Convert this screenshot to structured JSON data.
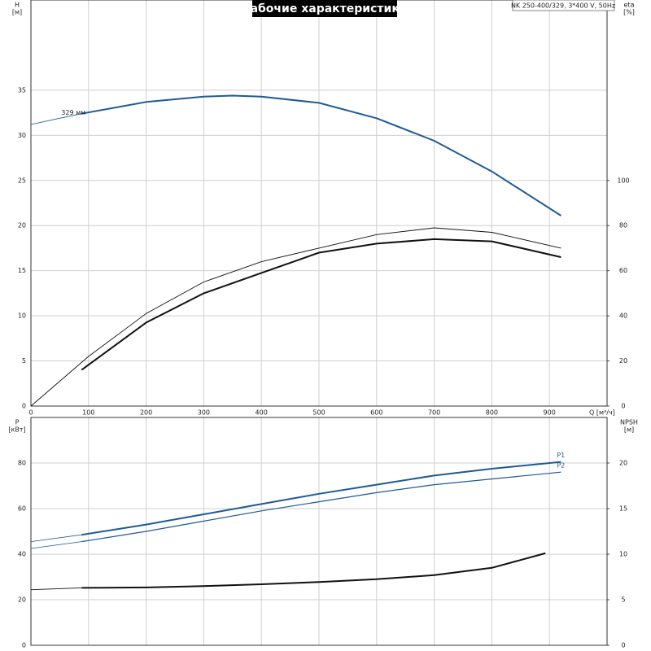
{
  "chart_data": [
    {
      "type": "line",
      "title": "Рабочие характеристики",
      "subtitle": "NK 250-400/329, 3*400 V, 50Hz",
      "ylabel": "H",
      "yunit": "[м]",
      "y2label": "eta",
      "y2unit": "[%]",
      "xlabel": "Q [м³/ч]",
      "xlim": [
        0,
        1000
      ],
      "xticks": [
        0,
        100,
        200,
        300,
        400,
        500,
        600,
        700,
        800,
        900
      ],
      "ylim": [
        0,
        45
      ],
      "yticks": [
        0,
        5,
        10,
        15,
        20,
        25,
        30,
        35
      ],
      "y2lim": [
        0,
        180
      ],
      "y2ticks": [
        0,
        20,
        40,
        60,
        80,
        100
      ],
      "grid": true,
      "show_xtick_labels": true,
      "series": [
        {
          "color": "#1f5a96",
          "width": 0.8,
          "x": [
            0,
            50,
            88
          ],
          "values": [
            31.2,
            31.9,
            32.4
          ]
        },
        {
          "color": "#1f5a96",
          "width": 2,
          "label": "329 мм",
          "x": [
            88,
            200,
            300,
            350,
            400,
            500,
            600,
            700,
            800,
            920
          ],
          "values": [
            32.4,
            33.7,
            34.3,
            34.4,
            34.3,
            33.6,
            31.9,
            29.4,
            26.0,
            21.1
          ]
        },
        {
          "color": "#111111",
          "width": 0.9,
          "axis": "y2",
          "x": [
            0,
            100,
            200,
            300,
            400,
            500,
            600,
            700,
            800,
            920
          ],
          "values": [
            0,
            22,
            41,
            55,
            64,
            70,
            76,
            79,
            77,
            70
          ]
        },
        {
          "color": "#111111",
          "width": 2,
          "axis": "y2",
          "x": [
            88,
            200,
            300,
            400,
            500,
            600,
            700,
            800,
            920
          ],
          "values": [
            16,
            37,
            50,
            59,
            68,
            72,
            74,
            73,
            66
          ]
        }
      ]
    },
    {
      "type": "line",
      "ylabel": "P",
      "yunit": "[кВт]",
      "y2label": "NPSH",
      "y2unit": "[м]",
      "xlim": [
        0,
        1000
      ],
      "xticks": [
        0,
        100,
        200,
        300,
        400,
        500,
        600,
        700,
        800,
        900
      ],
      "ylim": [
        0,
        100
      ],
      "yticks": [
        0,
        20,
        40,
        60,
        80
      ],
      "y2lim": [
        0,
        25
      ],
      "y2ticks": [
        0,
        5,
        10,
        15,
        20
      ],
      "grid": true,
      "show_xtick_labels": false,
      "series": [
        {
          "color": "#1f5a96",
          "width": 0.8,
          "x": [
            0,
            88
          ],
          "values": [
            45.5,
            48.5
          ]
        },
        {
          "name": "P1",
          "color": "#1f5a96",
          "width": 2,
          "x": [
            88,
            200,
            300,
            400,
            500,
            600,
            700,
            800,
            920
          ],
          "values": [
            48.5,
            53,
            57.5,
            62,
            66.5,
            70.5,
            74.5,
            77.5,
            80.5
          ]
        },
        {
          "color": "#1f5a96",
          "width": 0.8,
          "x": [
            0,
            88
          ],
          "values": [
            42.5,
            45.5
          ]
        },
        {
          "name": "P2",
          "color": "#1f5a96",
          "width": 1.2,
          "x": [
            88,
            200,
            300,
            400,
            500,
            600,
            700,
            800,
            920
          ],
          "values": [
            45.5,
            50,
            54.5,
            59,
            63,
            67,
            70.5,
            73,
            76
          ]
        },
        {
          "color": "#111111",
          "width": 0.9,
          "axis": "y2",
          "x": [
            0,
            88
          ],
          "values": [
            6.1,
            6.3
          ]
        },
        {
          "color": "#111111",
          "width": 2,
          "axis": "y2",
          "x": [
            88,
            200,
            300,
            400,
            500,
            600,
            700,
            800,
            893
          ],
          "values": [
            6.3,
            6.35,
            6.5,
            6.7,
            6.95,
            7.25,
            7.7,
            8.5,
            10.1
          ]
        }
      ]
    }
  ]
}
